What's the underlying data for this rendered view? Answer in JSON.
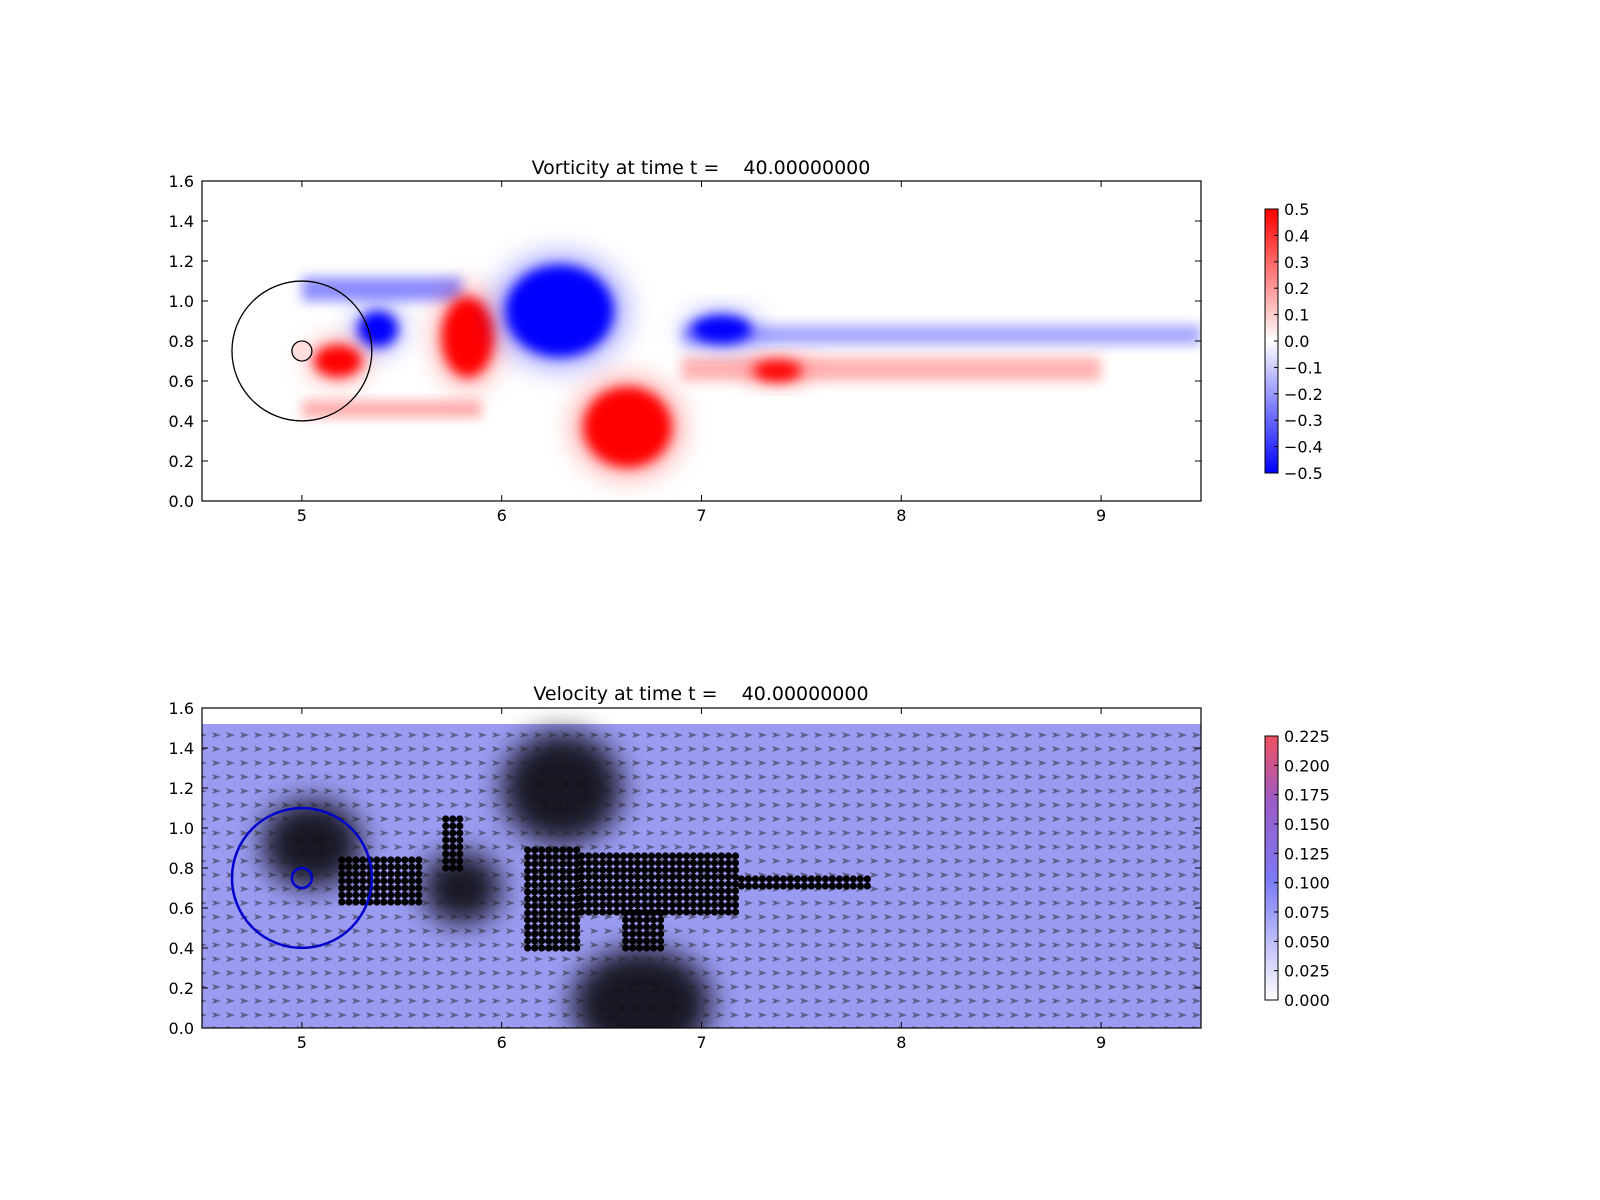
{
  "chart_data": [
    {
      "type": "heatmap",
      "title": "Vorticity at time t =    40.00000000",
      "xlim": [
        4.5,
        9.5
      ],
      "ylim": [
        0.0,
        1.6
      ],
      "xticks": [
        "5",
        "6",
        "7",
        "8",
        "9"
      ],
      "yticks": [
        "0.0",
        "0.2",
        "0.4",
        "0.6",
        "0.8",
        "1.0",
        "1.2",
        "1.4",
        "1.6"
      ],
      "colorbar": {
        "range": [
          -0.5,
          0.5
        ],
        "ticks": [
          "0.5",
          "0.4",
          "0.3",
          "0.2",
          "0.1",
          "0.0",
          "−0.1",
          "−0.2",
          "−0.3",
          "−0.4",
          "−0.5"
        ],
        "colors": {
          "low": "#0000ff",
          "mid": "#ffffff",
          "high": "#ff0000"
        }
      },
      "cylinder": {
        "center": [
          5.0,
          0.75
        ],
        "radius": 0.05,
        "outer_radius": 0.35,
        "edge_color": "#000000"
      },
      "vortices": [
        {
          "x": 5.38,
          "y": 0.86,
          "rx": 0.1,
          "ry": 0.09,
          "sign": -1
        },
        {
          "x": 5.18,
          "y": 0.7,
          "rx": 0.12,
          "ry": 0.08,
          "sign": 1
        },
        {
          "x": 5.83,
          "y": 0.82,
          "rx": 0.13,
          "ry": 0.2,
          "sign": 1
        },
        {
          "x": 6.29,
          "y": 0.95,
          "rx": 0.27,
          "ry": 0.23,
          "sign": -1
        },
        {
          "x": 6.63,
          "y": 0.37,
          "rx": 0.22,
          "ry": 0.2,
          "sign": 1
        },
        {
          "x": 7.1,
          "y": 0.86,
          "rx": 0.15,
          "ry": 0.07,
          "sign": -1
        },
        {
          "x": 7.38,
          "y": 0.65,
          "rx": 0.12,
          "ry": 0.05,
          "sign": 1
        }
      ]
    },
    {
      "type": "heatmap",
      "title": "Velocity at time t =    40.00000000",
      "xlim": [
        4.5,
        9.5
      ],
      "ylim": [
        0.0,
        1.6
      ],
      "xticks": [
        "5",
        "6",
        "7",
        "8",
        "9"
      ],
      "yticks": [
        "0.0",
        "0.2",
        "0.4",
        "0.6",
        "0.8",
        "1.0",
        "1.2",
        "1.4",
        "1.6"
      ],
      "colorbar": {
        "range": [
          0.0,
          0.225
        ],
        "ticks": [
          "0.225",
          "0.200",
          "0.175",
          "0.150",
          "0.125",
          "0.100",
          "0.075",
          "0.050",
          "0.025",
          "0.000"
        ],
        "colors": {
          "low": "#ffffff",
          "mid": "#7b7bf5",
          "high": "#f05060"
        }
      },
      "field_background": "#9b9bf2",
      "field_top": 1.52,
      "circle_color": "#0000cc",
      "cylinder": {
        "center": [
          5.0,
          0.75
        ],
        "radius": 0.05,
        "outer_radius": 0.35
      },
      "dark_regions": [
        {
          "x": 6.3,
          "y": 1.2,
          "rx": 0.3,
          "ry": 0.28
        },
        {
          "x": 6.7,
          "y": 0.12,
          "rx": 0.35,
          "ry": 0.28
        },
        {
          "x": 5.05,
          "y": 0.92,
          "rx": 0.25,
          "ry": 0.22
        },
        {
          "x": 5.8,
          "y": 0.7,
          "rx": 0.2,
          "ry": 0.18
        }
      ],
      "dot_regions": [
        {
          "x0": 5.2,
          "x1": 5.6,
          "y0": 0.63,
          "y1": 0.85
        },
        {
          "x0": 5.72,
          "x1": 5.82,
          "y0": 0.8,
          "y1": 1.05
        },
        {
          "x0": 6.13,
          "x1": 6.4,
          "y0": 0.4,
          "y1": 0.92
        },
        {
          "x0": 6.4,
          "x1": 7.2,
          "y0": 0.58,
          "y1": 0.86
        },
        {
          "x0": 7.2,
          "x1": 7.85,
          "y0": 0.71,
          "y1": 0.77
        },
        {
          "x0": 6.62,
          "x1": 6.8,
          "y0": 0.4,
          "y1": 0.58
        }
      ]
    }
  ]
}
